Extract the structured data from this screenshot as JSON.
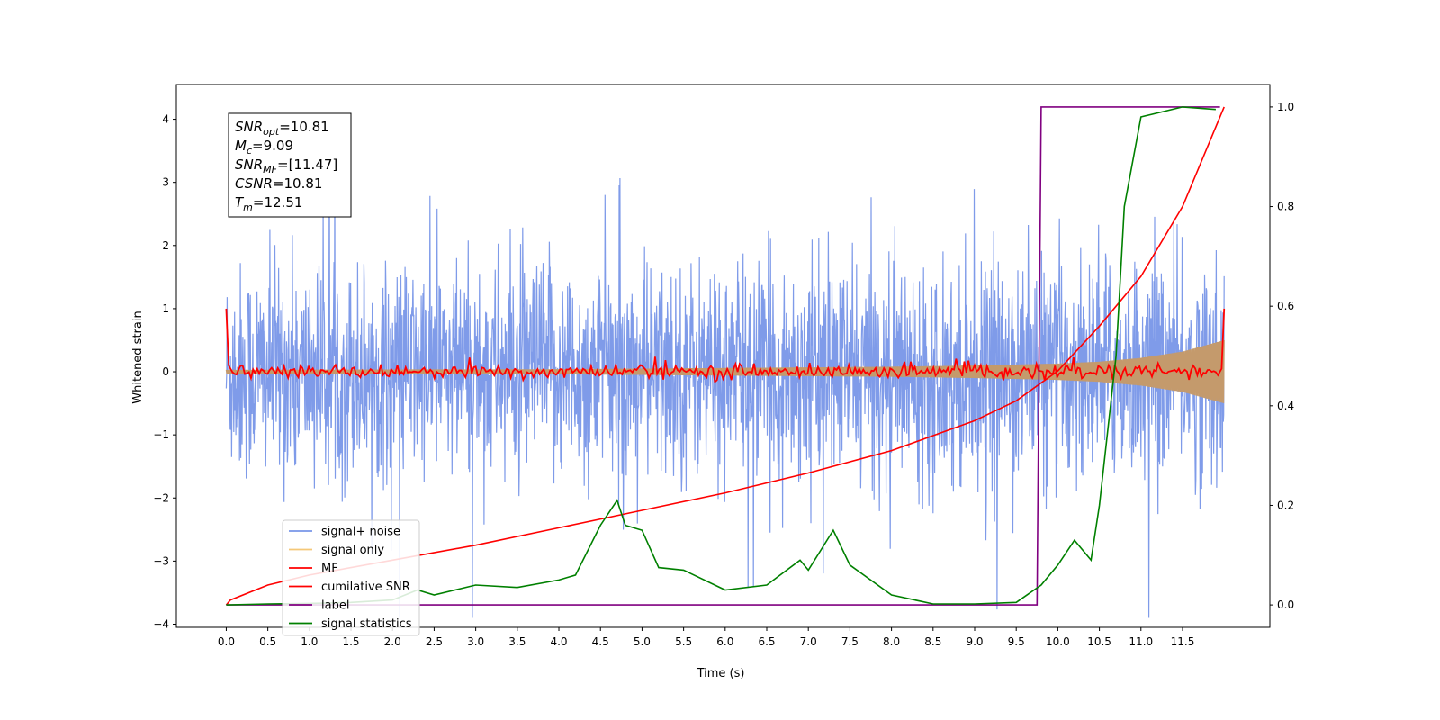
{
  "chart_data": {
    "type": "line",
    "xlabel": "Time (s)",
    "ylabel": "Whitened strain",
    "xlim": [
      -0.6,
      12.55
    ],
    "ylim_left": [
      -4.05,
      4.55
    ],
    "ylim_right": [
      -0.045,
      1.045
    ],
    "x_ticks": [
      "0.0",
      "0.5",
      "1.0",
      "1.5",
      "2.0",
      "2.5",
      "3.0",
      "3.5",
      "4.0",
      "4.5",
      "5.0",
      "5.5",
      "6.0",
      "6.5",
      "7.0",
      "7.5",
      "8.0",
      "8.5",
      "9.0",
      "9.5",
      "10.0",
      "10.5",
      "11.0",
      "11.5"
    ],
    "y_ticks_left": [
      "4",
      "3",
      "2",
      "1",
      "0",
      "−1",
      "−2",
      "−3",
      "−4"
    ],
    "y_ticks_right": [
      "1.0",
      "0.8",
      "0.6",
      "0.4",
      "0.2",
      "0.0"
    ],
    "grid": false,
    "legend_position": "lower-left",
    "annotation": [
      {
        "base": "SNR",
        "sub": "opt",
        "value": "=10.81"
      },
      {
        "base": "M",
        "sub": "c",
        "value": "=9.09"
      },
      {
        "base": "SNR",
        "sub": "MF",
        "value": "=[11.47]"
      },
      {
        "base": "CSNR",
        "sub": "",
        "value": "=10.81"
      },
      {
        "base": "T",
        "sub": "m",
        "value": "=12.51"
      }
    ],
    "series": [
      {
        "name": "signal+ noise",
        "color": "#7896e8",
        "axis": "left",
        "description_values": "noise band approx ±1.5 with spikes to ±4",
        "t_range": [
          0.0,
          12.0
        ]
      },
      {
        "name": "signal only",
        "color": "#f0c060",
        "axis": "left",
        "envelope": {
          "t": [
            0,
            4,
            6,
            8,
            9,
            10,
            10.5,
            11,
            11.5,
            12.0
          ],
          "amp": [
            0.03,
            0.04,
            0.06,
            0.08,
            0.1,
            0.13,
            0.16,
            0.22,
            0.32,
            0.5
          ]
        }
      },
      {
        "name": "MF",
        "color": "#ff0000",
        "axis": "left",
        "description_values": "starts at 1.0, oscillates about 0 with amplitude ~0.1, ends at 1.0"
      },
      {
        "name": "cumilative SNR",
        "color": "#ff0000",
        "axis": "right",
        "x": [
          0.0,
          0.05,
          0.5,
          1.0,
          2.0,
          3.0,
          4.0,
          5.0,
          6.0,
          7.0,
          8.0,
          8.5,
          9.0,
          9.5,
          10.0,
          10.5,
          11.0,
          11.5,
          12.0
        ],
        "y": [
          0.0,
          0.01,
          0.04,
          0.06,
          0.09,
          0.12,
          0.155,
          0.19,
          0.225,
          0.265,
          0.31,
          0.34,
          0.37,
          0.41,
          0.47,
          0.56,
          0.66,
          0.8,
          1.0
        ]
      },
      {
        "name": "label",
        "color": "#800080",
        "axis": "right",
        "x": [
          0.0,
          9.75,
          9.8,
          11.95
        ],
        "y": [
          0.0,
          0.0,
          1.0,
          1.0
        ]
      },
      {
        "name": "signal statistics",
        "color": "#008000",
        "axis": "right",
        "x": [
          0.0,
          0.5,
          1.0,
          1.5,
          2.0,
          2.3,
          2.5,
          3.0,
          3.5,
          4.0,
          4.2,
          4.5,
          4.7,
          4.8,
          5.0,
          5.2,
          5.5,
          6.0,
          6.5,
          6.9,
          7.0,
          7.3,
          7.5,
          8.0,
          8.5,
          9.0,
          9.5,
          9.8,
          10.0,
          10.2,
          10.4,
          10.5,
          10.7,
          10.8,
          11.0,
          11.5,
          11.9
        ],
        "y": [
          0.0,
          0.002,
          0.003,
          0.005,
          0.01,
          0.03,
          0.02,
          0.04,
          0.035,
          0.05,
          0.06,
          0.16,
          0.21,
          0.16,
          0.15,
          0.075,
          0.07,
          0.03,
          0.04,
          0.09,
          0.07,
          0.15,
          0.08,
          0.02,
          0.002,
          0.002,
          0.005,
          0.04,
          0.08,
          0.13,
          0.09,
          0.2,
          0.5,
          0.8,
          0.98,
          1.0,
          0.995
        ]
      }
    ]
  }
}
